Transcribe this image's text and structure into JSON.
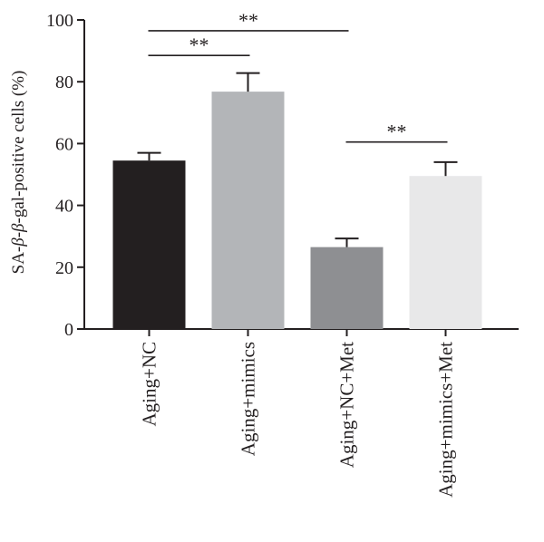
{
  "chart_data": {
    "type": "bar",
    "title": "",
    "ylabel_prefix": "SA-",
    "ylabel_beta1": "β",
    "ylabel_mid": "-",
    "ylabel_beta2": "β",
    "ylabel_suffix": "-gal-positive cells (%)",
    "ylim": [
      0,
      100
    ],
    "yticks": [
      0,
      20,
      40,
      60,
      80,
      100
    ],
    "grid": false,
    "legend": "none",
    "categories": [
      "Aging+NC",
      "Aging+mimics",
      "Aging+NC+Met",
      "Aging+mimics+Met"
    ],
    "values": [
      54.5,
      76.8,
      26.5,
      49.5
    ],
    "errors": [
      2.5,
      6.0,
      2.8,
      4.5
    ],
    "colors": [
      "#231f20",
      "#b3b5b8",
      "#8e8f92",
      "#e8e8e9"
    ],
    "significance": [
      {
        "from": 0,
        "to": 2,
        "label": "**",
        "y": 96.5
      },
      {
        "from": 0,
        "to": 1,
        "label": "**",
        "y": 88.5
      },
      {
        "from": 2,
        "to": 3,
        "label": "**",
        "y": 60.5
      }
    ]
  }
}
